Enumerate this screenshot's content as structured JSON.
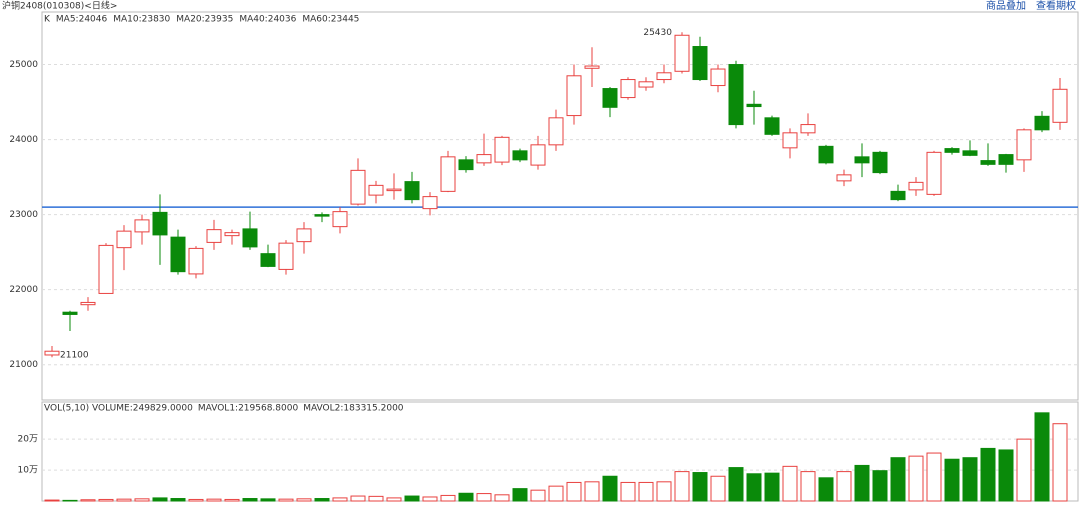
{
  "header": {
    "title": "沪铜2408(010308)<日线>",
    "links": [
      "商品叠加",
      "查看期权"
    ]
  },
  "chart_data": [
    {
      "type": "candlestick",
      "legend": [
        "K",
        "MA5:24046",
        "MA10:23830",
        "MA20:23935",
        "MA40:24036",
        "MA60:23445"
      ],
      "legend_colors": [
        "#333333",
        "#333333",
        "#f0902a",
        "#7a4fa0",
        "#2a3fd0",
        "#f08cf0"
      ],
      "up_color": "#e8413f",
      "down_color": "#0a8a0a",
      "hline": 23100,
      "hline_color": "#2d6fd8",
      "ylim": [
        20530,
        25700
      ],
      "yticks": [
        21000,
        22000,
        23000,
        24000,
        25000
      ],
      "grid": true,
      "series": {
        "open": [
          21130,
          21700,
          21800,
          21950,
          22560,
          22770,
          23030,
          22700,
          22210,
          22630,
          22720,
          22810,
          22480,
          22270,
          22640,
          23000,
          22840,
          23140,
          23260,
          23320,
          23440,
          23080,
          23310,
          23730,
          23690,
          23700,
          23850,
          23660,
          23930,
          24320,
          24950,
          24680,
          24560,
          24700,
          24800,
          24910,
          25240,
          24720,
          25000,
          24470,
          24290,
          23890,
          24090,
          23910,
          23450,
          23770,
          23830,
          23310,
          23330,
          23270,
          23880,
          23850,
          23720,
          23800,
          23730,
          24310,
          24230
        ],
        "high": [
          21250,
          21720,
          21900,
          22620,
          22860,
          23000,
          23270,
          22800,
          22580,
          22930,
          22800,
          23040,
          22600,
          22660,
          22900,
          23030,
          23100,
          23750,
          23450,
          23550,
          23570,
          23300,
          23850,
          23780,
          24080,
          24050,
          23880,
          24050,
          24400,
          25000,
          25230,
          24700,
          24830,
          24830,
          25000,
          25430,
          25370,
          25000,
          25050,
          24650,
          24320,
          24150,
          24350,
          23930,
          23600,
          23950,
          23850,
          23400,
          23500,
          23850,
          23900,
          23990,
          23950,
          23810,
          24150,
          24380,
          24820
        ],
        "low": [
          21100,
          21450,
          21720,
          21950,
          22260,
          22600,
          22330,
          22200,
          22150,
          22530,
          22600,
          22530,
          22300,
          22200,
          22480,
          22900,
          22750,
          23120,
          23150,
          23200,
          23150,
          22990,
          23300,
          23560,
          23650,
          23660,
          23700,
          23600,
          23850,
          24200,
          24700,
          24300,
          24530,
          24650,
          24750,
          24880,
          24780,
          24630,
          24150,
          24200,
          24050,
          23750,
          24050,
          23670,
          23380,
          23500,
          23540,
          23180,
          23250,
          23250,
          23800,
          23780,
          23650,
          23560,
          23570,
          24100,
          24130
        ],
        "close": [
          21180,
          21670,
          21830,
          22590,
          22780,
          22930,
          22730,
          22240,
          22550,
          22800,
          22760,
          22570,
          22310,
          22620,
          22810,
          22980,
          23040,
          23590,
          23390,
          23340,
          23200,
          23240,
          23770,
          23600,
          23800,
          24030,
          23730,
          23930,
          24290,
          24850,
          24980,
          24430,
          24800,
          24770,
          24890,
          25390,
          24800,
          24940,
          24200,
          24440,
          24070,
          24090,
          24200,
          23690,
          23530,
          23690,
          23560,
          23200,
          23430,
          23830,
          23830,
          23790,
          23670,
          23670,
          24130,
          24130,
          24670
        ]
      }
    },
    {
      "type": "bar",
      "legend": [
        "VOL(5,10) VOLUME:249829.0000",
        "MAVOL1:219568.8000",
        "MAVOL2:183315.2000"
      ],
      "legend_colors": [
        "#333333",
        "#1f2f80",
        "#f0902a"
      ],
      "ylim": [
        0,
        320000
      ],
      "yticks": [
        {
          "value": 100000,
          "label": "10万"
        },
        {
          "value": 200000,
          "label": "20万"
        }
      ],
      "values": [
        3000,
        2000,
        4000,
        5000,
        6000,
        7000,
        10000,
        8000,
        5000,
        6000,
        5000,
        8000,
        7000,
        6000,
        7000,
        8000,
        10000,
        16000,
        15000,
        10000,
        16000,
        13000,
        18000,
        25000,
        24000,
        20000,
        40000,
        35000,
        48000,
        60000,
        62000,
        80000,
        60000,
        60000,
        62000,
        95000,
        92000,
        80000,
        108000,
        88000,
        90000,
        112000,
        95000,
        75000,
        95000,
        115000,
        98000,
        140000,
        145000,
        155000,
        135000,
        140000,
        170000,
        165000,
        200000,
        285000,
        249829
      ]
    }
  ]
}
